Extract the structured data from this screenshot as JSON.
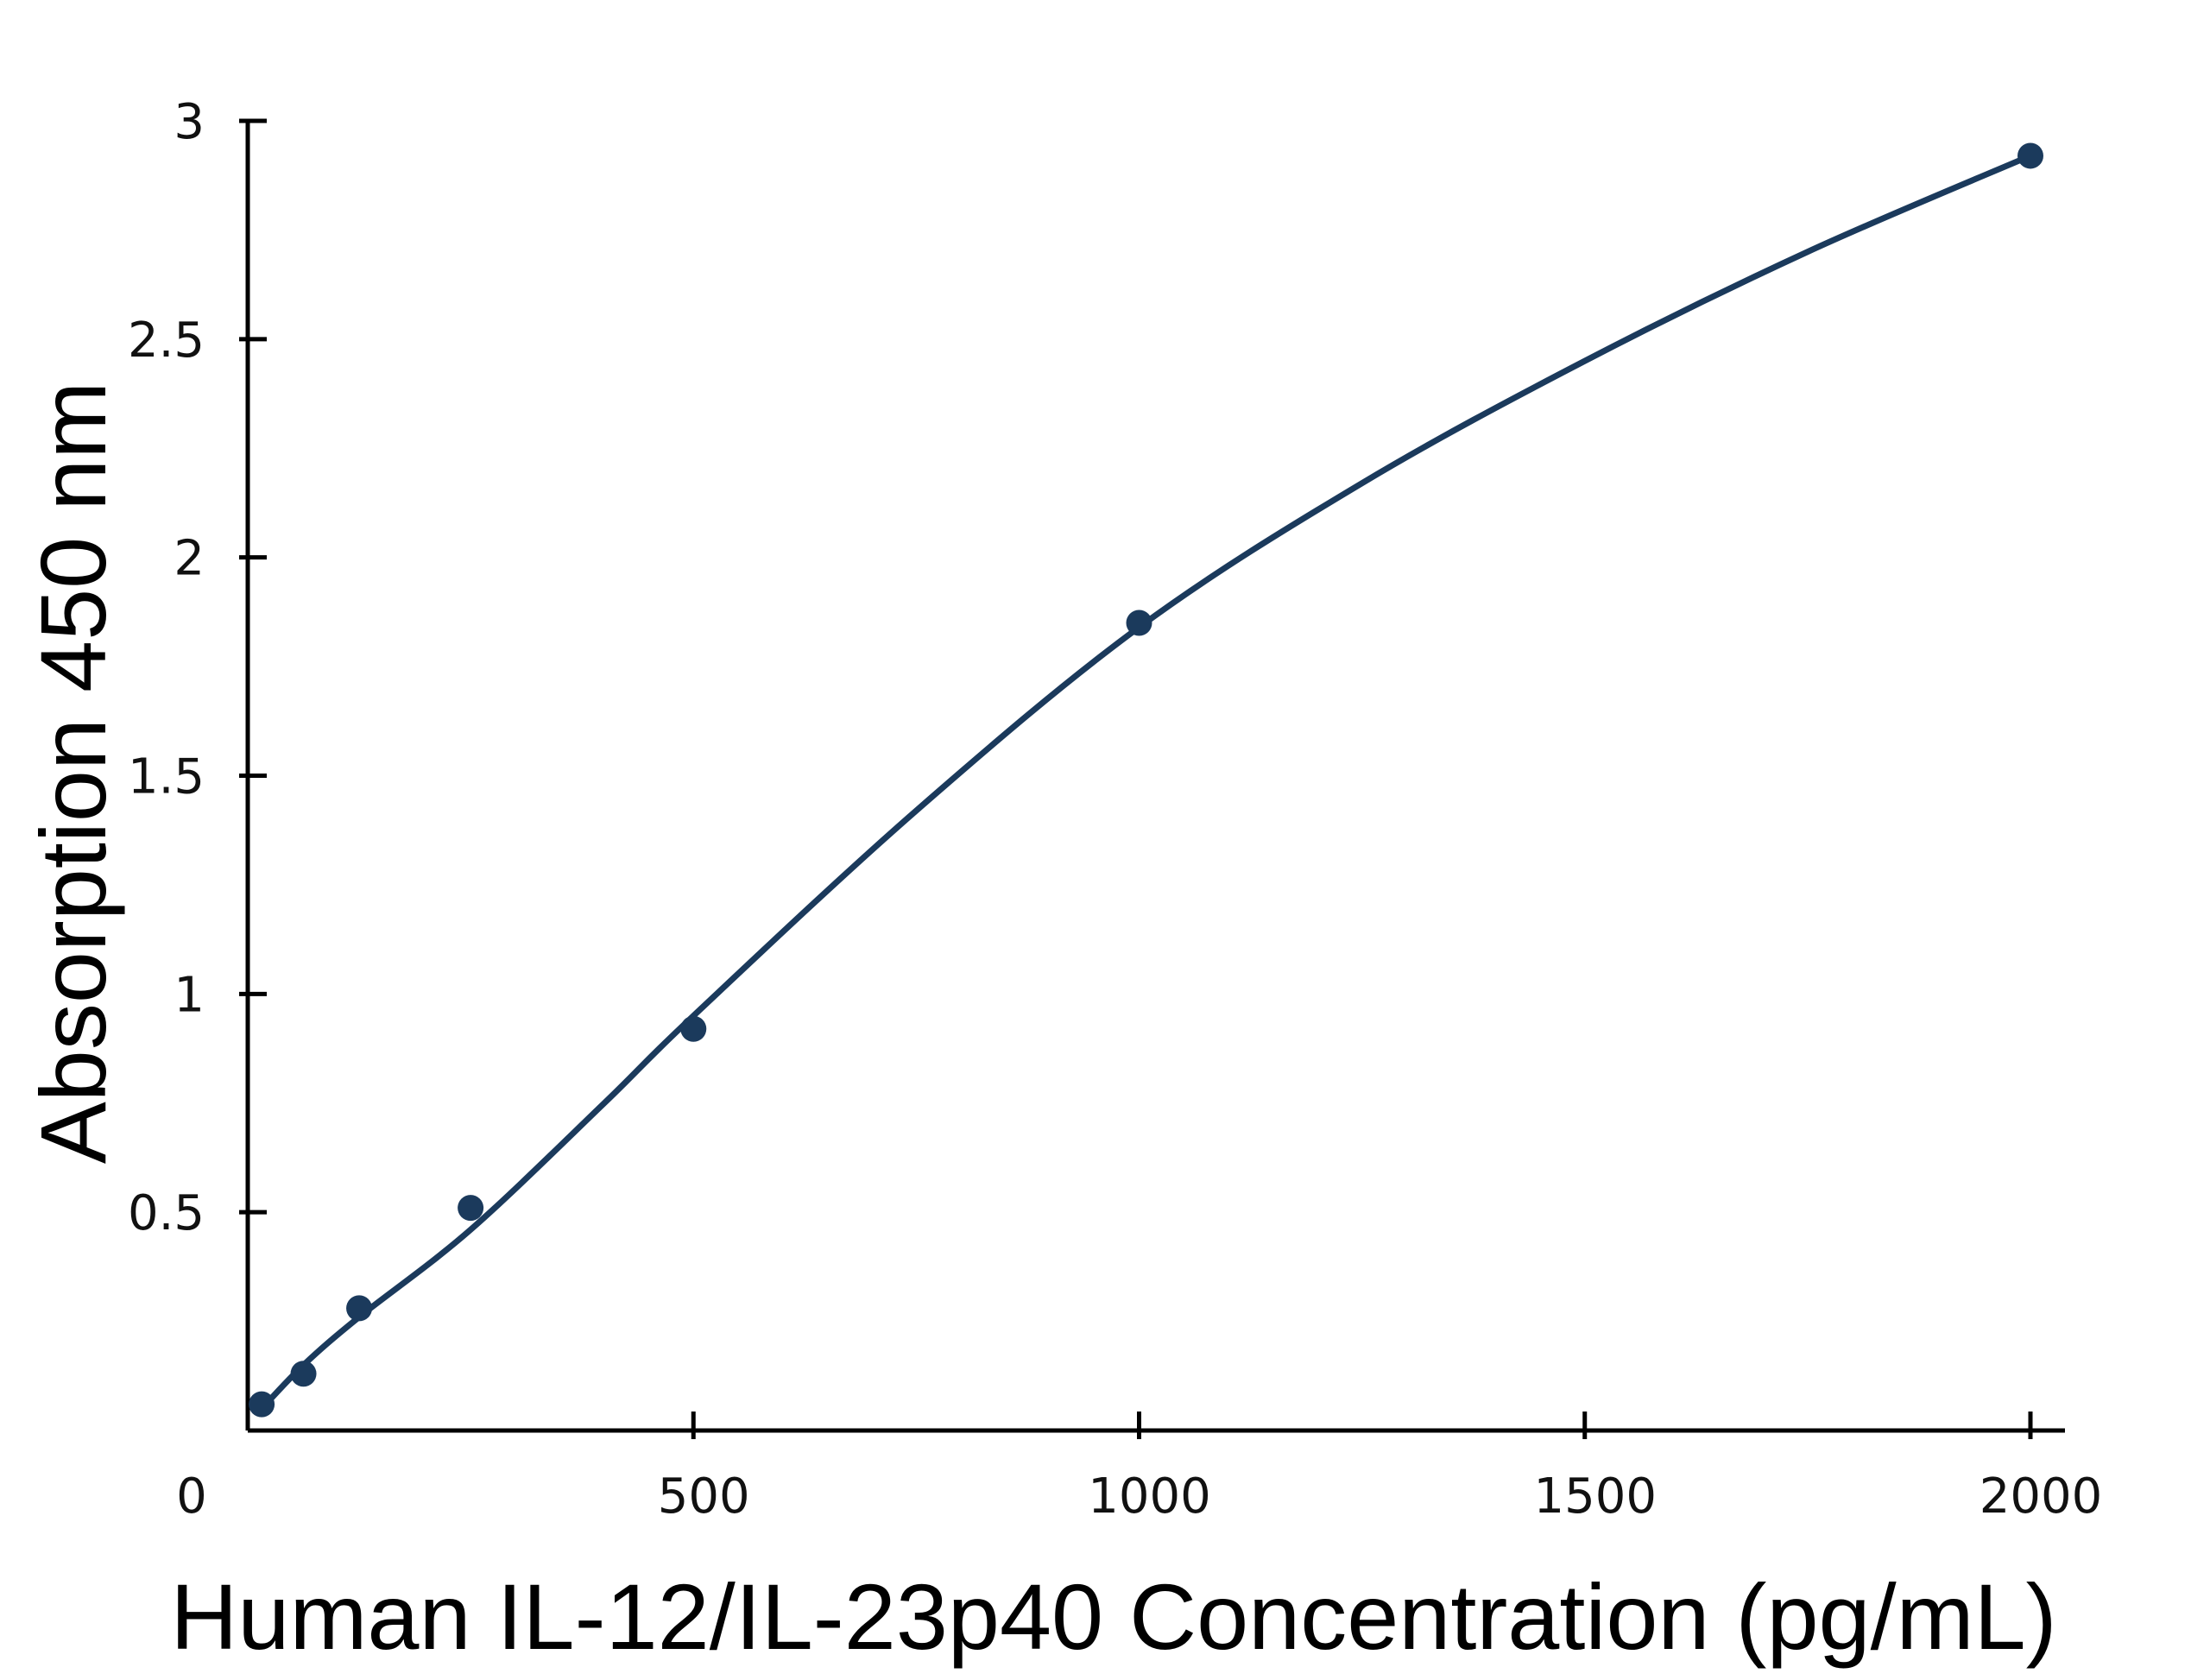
{
  "chart_data": {
    "type": "scatter",
    "title": "",
    "xlabel": "Human IL-12/IL-23p40 Concentration (pg/mL)",
    "ylabel": "Absorption 450 nm",
    "xlim": [
      0,
      2000
    ],
    "ylim": [
      0,
      3
    ],
    "x_ticks": [
      0,
      500,
      1000,
      1500,
      2000
    ],
    "x_tick_labels": [
      "0",
      "500",
      "1000",
      "1500",
      "2000"
    ],
    "y_ticks": [
      0.5,
      1,
      1.5,
      2,
      2.5,
      3
    ],
    "y_tick_labels": [
      "0.5",
      "1",
      "1.5",
      "2",
      "2.5",
      "3"
    ],
    "grid": false,
    "legend": "none",
    "series": [
      {
        "x": [
          15.6,
          62.5,
          125,
          250,
          500,
          1000,
          2000
        ],
        "y": [
          0.06,
          0.13,
          0.28,
          0.51,
          0.92,
          1.85,
          2.92
        ]
      }
    ],
    "fit_curve": {
      "type": "smooth",
      "x": [
        15.6,
        62.5,
        125,
        250,
        400,
        500,
        750,
        1000,
        1250,
        1500,
        1750,
        2000
      ],
      "y": [
        0.05,
        0.15,
        0.26,
        0.46,
        0.75,
        0.95,
        1.42,
        1.84,
        2.17,
        2.45,
        2.7,
        2.92
      ]
    },
    "color": "#1b3a5c"
  }
}
